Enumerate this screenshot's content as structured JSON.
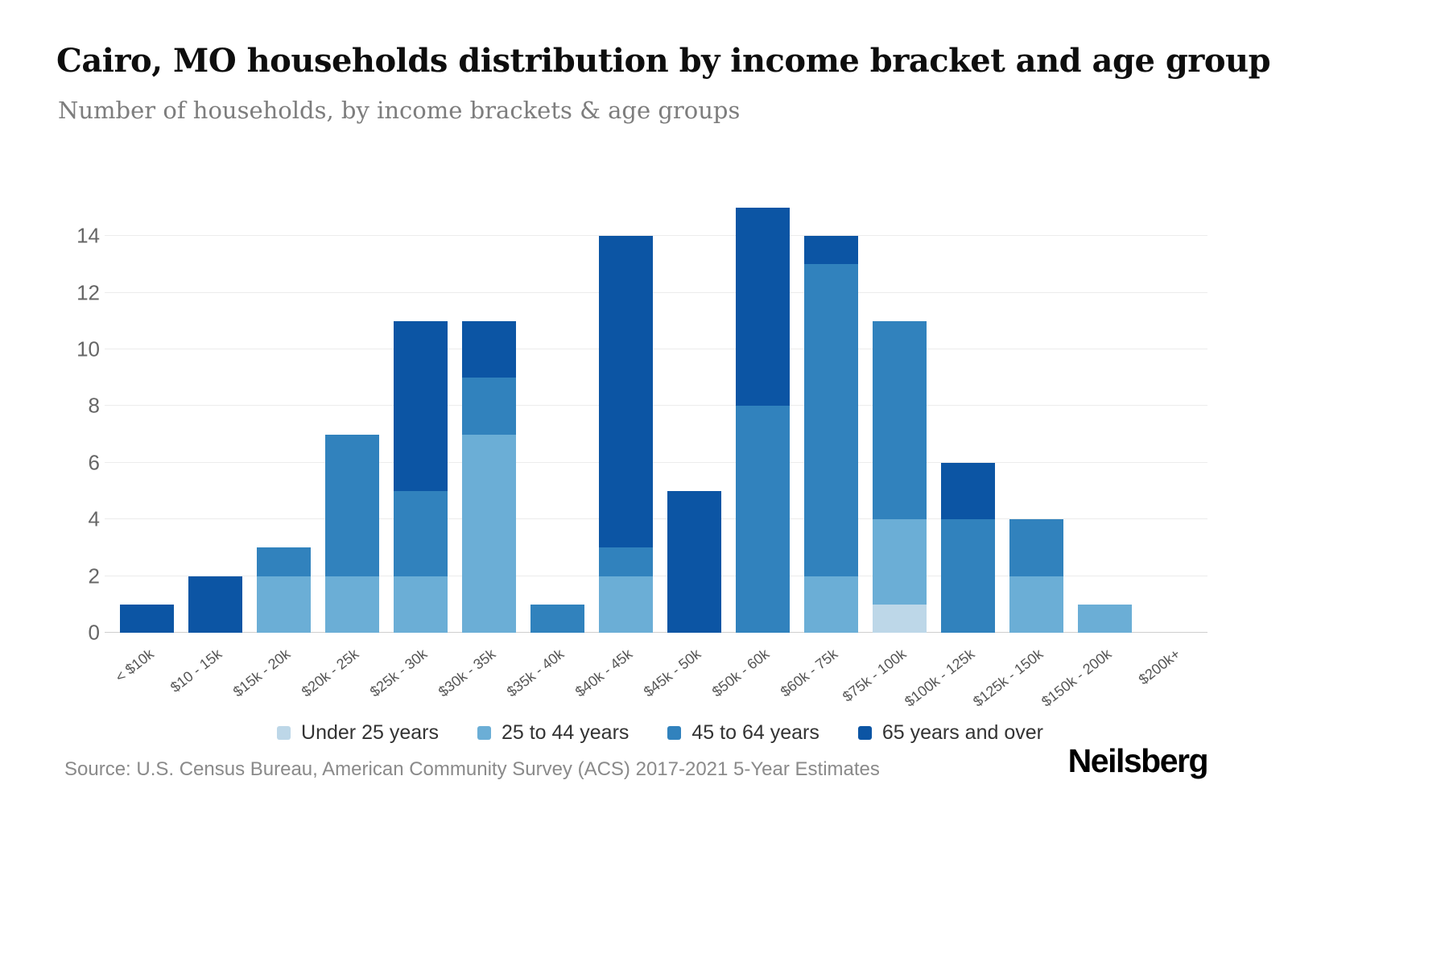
{
  "header": {
    "title": "Cairo, MO households distribution by income bracket and age group",
    "subtitle": "Number of households, by income brackets & age groups"
  },
  "chart_data": {
    "type": "bar",
    "stacked": true,
    "title": "Cairo, MO households distribution by income bracket and age group",
    "xlabel": "",
    "ylabel": "Number of households",
    "ylim": [
      0,
      15
    ],
    "yticks": [
      0,
      2,
      4,
      6,
      8,
      10,
      12,
      14
    ],
    "grid": true,
    "legend_position": "bottom",
    "categories": [
      "< $10k",
      "$10 - 15k",
      "$15k - 20k",
      "$20k - 25k",
      "$25k - 30k",
      "$30k - 35k",
      "$35k - 40k",
      "$40k - 45k",
      "$45k - 50k",
      "$50k - 60k",
      "$60k - 75k",
      "$75k - 100k",
      "$100k - 125k",
      "$125k - 150k",
      "$150k - 200k",
      "$200k+"
    ],
    "series": [
      {
        "name": "Under 25 years",
        "color": "#bdd7e8",
        "values": [
          0,
          0,
          0,
          0,
          0,
          0,
          0,
          0,
          0,
          0,
          0,
          1,
          0,
          0,
          0,
          0
        ]
      },
      {
        "name": "25 to 44 years",
        "color": "#6baed6",
        "values": [
          0,
          0,
          2,
          2,
          2,
          7,
          0,
          2,
          0,
          0,
          2,
          3,
          0,
          2,
          1,
          0
        ]
      },
      {
        "name": "45 to 64 years",
        "color": "#3182bd",
        "values": [
          0,
          0,
          1,
          5,
          3,
          2,
          1,
          1,
          0,
          8,
          11,
          7,
          4,
          2,
          0,
          0
        ]
      },
      {
        "name": "65 years and over",
        "color": "#0c55a4",
        "values": [
          1,
          2,
          0,
          0,
          6,
          2,
          0,
          11,
          5,
          7,
          1,
          0,
          2,
          0,
          0,
          0
        ]
      }
    ]
  },
  "footer": {
    "source": "Source: U.S. Census Bureau, American Community Survey (ACS) 2017-2021 5-Year Estimates",
    "brand": "Neilsberg"
  }
}
